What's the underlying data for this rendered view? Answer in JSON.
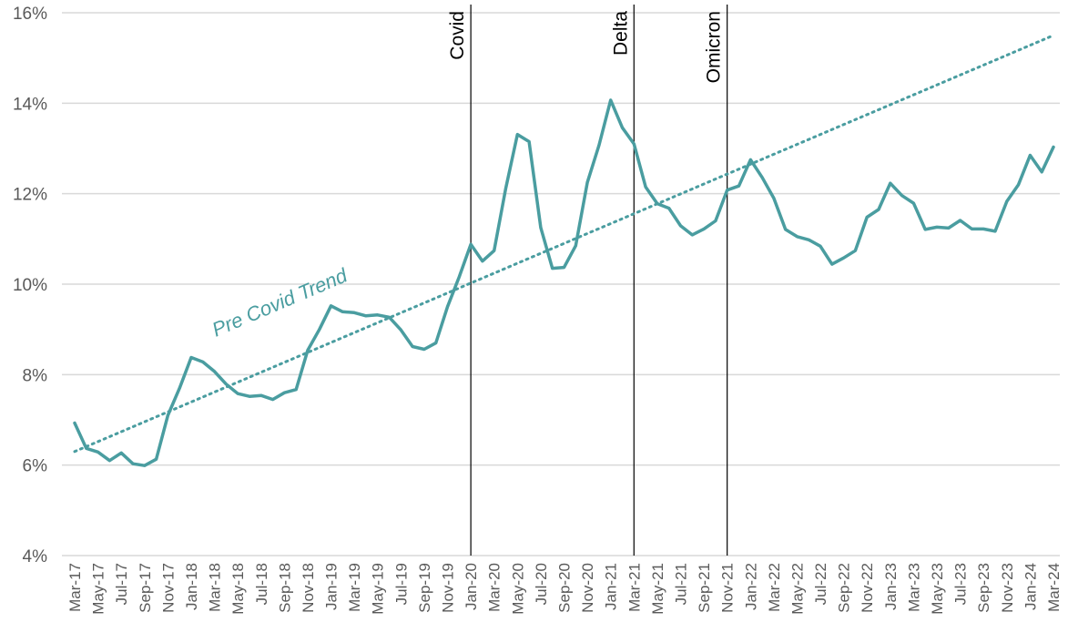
{
  "chart_data": {
    "type": "line",
    "ylim": [
      0.04,
      0.16
    ],
    "yticks": [
      {
        "value": 0.04,
        "label": "4%"
      },
      {
        "value": 0.06,
        "label": "6%"
      },
      {
        "value": 0.08,
        "label": "8%"
      },
      {
        "value": 0.1,
        "label": "10%"
      },
      {
        "value": 0.12,
        "label": "12%"
      },
      {
        "value": 0.14,
        "label": "14%"
      },
      {
        "value": 0.16,
        "label": "16%"
      }
    ],
    "grid": true,
    "x": [
      "Mar-17",
      "Apr-17",
      "May-17",
      "Jun-17",
      "Jul-17",
      "Aug-17",
      "Sep-17",
      "Oct-17",
      "Nov-17",
      "Dec-17",
      "Jan-18",
      "Feb-18",
      "Mar-18",
      "Apr-18",
      "May-18",
      "Jun-18",
      "Jul-18",
      "Aug-18",
      "Sep-18",
      "Oct-18",
      "Nov-18",
      "Dec-18",
      "Jan-19",
      "Feb-19",
      "Mar-19",
      "Apr-19",
      "May-19",
      "Jun-19",
      "Jul-19",
      "Aug-19",
      "Sep-19",
      "Oct-19",
      "Nov-19",
      "Dec-19",
      "Jan-20",
      "Feb-20",
      "Mar-20",
      "Apr-20",
      "May-20",
      "Jun-20",
      "Jul-20",
      "Aug-20",
      "Sep-20",
      "Oct-20",
      "Nov-20",
      "Dec-20",
      "Jan-21",
      "Feb-21",
      "Mar-21",
      "Apr-21",
      "May-21",
      "Jun-21",
      "Jul-21",
      "Aug-21",
      "Sep-21",
      "Oct-21",
      "Nov-21",
      "Dec-21",
      "Jan-22",
      "Feb-22",
      "Mar-22",
      "Apr-22",
      "May-22",
      "Jun-22",
      "Jul-22",
      "Aug-22",
      "Sep-22",
      "Oct-22",
      "Nov-22",
      "Dec-22",
      "Jan-23",
      "Feb-23",
      "Mar-23",
      "Apr-23",
      "May-23",
      "Jun-23",
      "Jul-23",
      "Aug-23",
      "Sep-23",
      "Oct-23",
      "Nov-23",
      "Dec-23",
      "Jan-24",
      "Feb-24",
      "Mar-24"
    ],
    "x_tick_labels": [
      "Mar-17",
      "May-17",
      "Jul-17",
      "Sep-17",
      "Nov-17",
      "Jan-18",
      "Mar-18",
      "May-18",
      "Jul-18",
      "Sep-18",
      "Nov-18",
      "Jan-19",
      "Mar-19",
      "May-19",
      "Jul-19",
      "Sep-19",
      "Nov-19",
      "Jan-20",
      "Mar-20",
      "May-20",
      "Jul-20",
      "Sep-20",
      "Nov-20",
      "Jan-21",
      "Mar-21",
      "May-21",
      "Jul-21",
      "Sep-21",
      "Nov-21",
      "Jan-22",
      "Mar-22",
      "May-22",
      "Jul-22",
      "Sep-22",
      "Nov-22",
      "Jan-23",
      "Mar-23",
      "May-23",
      "Jul-23",
      "Sep-23",
      "Nov-23",
      "Jan-24",
      "Mar-24"
    ],
    "series": [
      {
        "color": "#4A9DA0",
        "values": [
          0.0693,
          0.0637,
          0.0629,
          0.061,
          0.0627,
          0.0603,
          0.0599,
          0.0613,
          0.071,
          0.077,
          0.0838,
          0.0828,
          0.0807,
          0.0779,
          0.0758,
          0.0752,
          0.0754,
          0.0745,
          0.076,
          0.0767,
          0.0854,
          0.09,
          0.0952,
          0.0939,
          0.0937,
          0.093,
          0.0932,
          0.0927,
          0.0899,
          0.0862,
          0.0856,
          0.087,
          0.095,
          0.1016,
          0.1088,
          0.1051,
          0.1074,
          0.1212,
          0.1331,
          0.1315,
          0.1125,
          0.1035,
          0.1037,
          0.1085,
          0.1225,
          0.1307,
          0.1407,
          0.1346,
          0.131,
          0.1215,
          0.1178,
          0.1168,
          0.1129,
          0.1109,
          0.1122,
          0.114,
          0.1208,
          0.1217,
          0.1275,
          0.1236,
          0.119,
          0.1121,
          0.1105,
          0.1098,
          0.1084,
          0.1044,
          0.1058,
          0.1074,
          0.1148,
          0.1165,
          0.1223,
          0.1196,
          0.1179,
          0.1121,
          0.1126,
          0.1124,
          0.1141,
          0.1122,
          0.1122,
          0.1117,
          0.1183,
          0.122,
          0.1285,
          0.1248,
          0.1303
        ]
      }
    ],
    "trend": {
      "label": "Pre Covid Trend",
      "color": "#4A9DA0",
      "style": "dotted",
      "start": {
        "x": "Mar-17",
        "y": 0.063
      },
      "end": {
        "x": "Mar-24",
        "y": 0.155
      }
    },
    "annotations": [
      {
        "x": "Jan-20",
        "label": "Covid"
      },
      {
        "x": "Mar-21",
        "label": "Delta"
      },
      {
        "x": "Nov-21",
        "label": "Omicron"
      }
    ]
  }
}
